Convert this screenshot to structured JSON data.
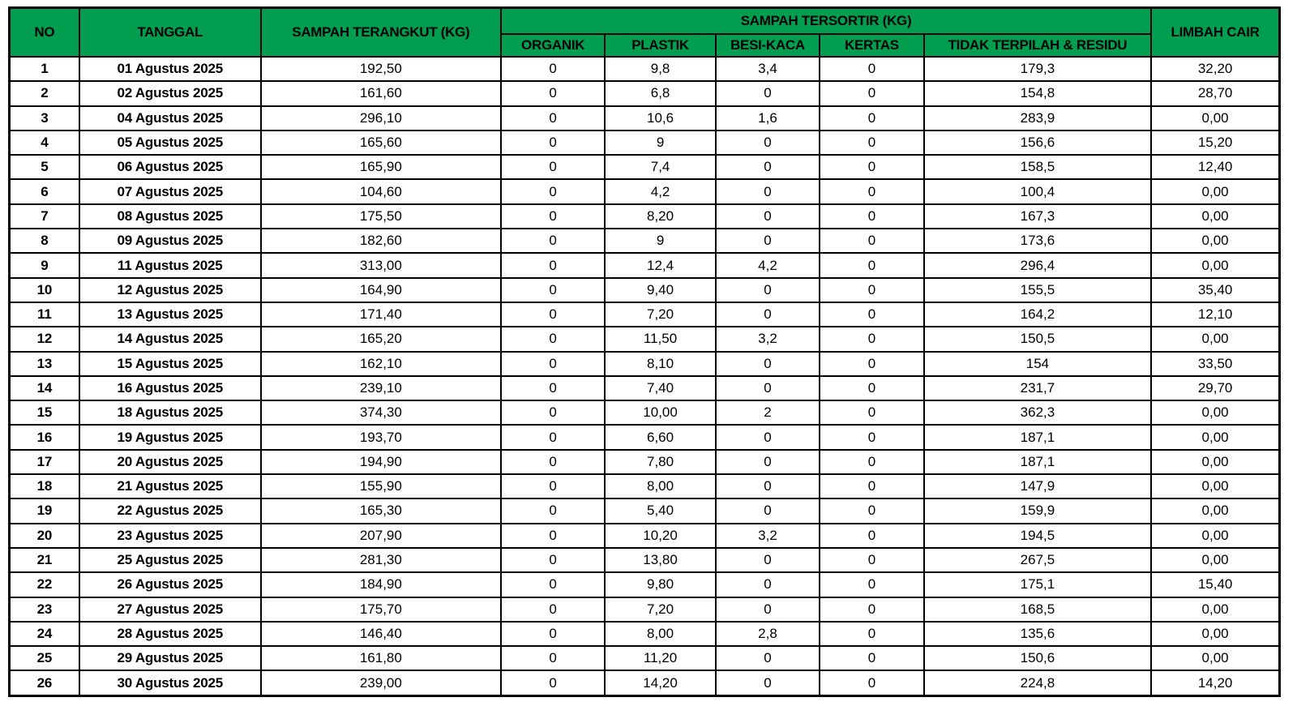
{
  "colors": {
    "header_bg": "#009E4E",
    "border": "#000000",
    "row_bg": "#FFFFFF",
    "text": "#000000"
  },
  "table": {
    "headers": {
      "no": "NO",
      "tanggal": "TANGGAL",
      "terangkut": "SAMPAH TERANGKUT (KG)",
      "tersortir_group": "SAMPAH TERSORTIR (KG)",
      "organik": "ORGANIK",
      "plastik": "PLASTIK",
      "besi_kaca": "BESI-KACA",
      "kertas": "KERTAS",
      "tidak_terpilah": "TIDAK TERPILAH & RESIDU",
      "limbah_cair": "LIMBAH CAIR"
    },
    "rows": [
      [
        "1",
        "01 Agustus 2025",
        "192,50",
        "0",
        "9,8",
        "3,4",
        "0",
        "179,3",
        "32,20"
      ],
      [
        "2",
        "02 Agustus 2025",
        "161,60",
        "0",
        "6,8",
        "0",
        "0",
        "154,8",
        "28,70"
      ],
      [
        "3",
        "04 Agustus 2025",
        "296,10",
        "0",
        "10,6",
        "1,6",
        "0",
        "283,9",
        "0,00"
      ],
      [
        "4",
        "05 Agustus 2025",
        "165,60",
        "0",
        "9",
        "0",
        "0",
        "156,6",
        "15,20"
      ],
      [
        "5",
        "06 Agustus 2025",
        "165,90",
        "0",
        "7,4",
        "0",
        "0",
        "158,5",
        "12,40"
      ],
      [
        "6",
        "07 Agustus 2025",
        "104,60",
        "0",
        "4,2",
        "0",
        "0",
        "100,4",
        "0,00"
      ],
      [
        "7",
        "08 Agustus 2025",
        "175,50",
        "0",
        "8,20",
        "0",
        "0",
        "167,3",
        "0,00"
      ],
      [
        "8",
        "09 Agustus 2025",
        "182,60",
        "0",
        "9",
        "0",
        "0",
        "173,6",
        "0,00"
      ],
      [
        "9",
        "11 Agustus 2025",
        "313,00",
        "0",
        "12,4",
        "4,2",
        "0",
        "296,4",
        "0,00"
      ],
      [
        "10",
        "12 Agustus 2025",
        "164,90",
        "0",
        "9,40",
        "0",
        "0",
        "155,5",
        "35,40"
      ],
      [
        "11",
        "13 Agustus 2025",
        "171,40",
        "0",
        "7,20",
        "0",
        "0",
        "164,2",
        "12,10"
      ],
      [
        "12",
        "14 Agustus 2025",
        "165,20",
        "0",
        "11,50",
        "3,2",
        "0",
        "150,5",
        "0,00"
      ],
      [
        "13",
        "15 Agustus 2025",
        "162,10",
        "0",
        "8,10",
        "0",
        "0",
        "154",
        "33,50"
      ],
      [
        "14",
        "16 Agustus 2025",
        "239,10",
        "0",
        "7,40",
        "0",
        "0",
        "231,7",
        "29,70"
      ],
      [
        "15",
        "18 Agustus 2025",
        "374,30",
        "0",
        "10,00",
        "2",
        "0",
        "362,3",
        "0,00"
      ],
      [
        "16",
        "19 Agustus 2025",
        "193,70",
        "0",
        "6,60",
        "0",
        "0",
        "187,1",
        "0,00"
      ],
      [
        "17",
        "20 Agustus 2025",
        "194,90",
        "0",
        "7,80",
        "0",
        "0",
        "187,1",
        "0,00"
      ],
      [
        "18",
        "21 Agustus 2025",
        "155,90",
        "0",
        "8,00",
        "0",
        "0",
        "147,9",
        "0,00"
      ],
      [
        "19",
        "22 Agustus 2025",
        "165,30",
        "0",
        "5,40",
        "0",
        "0",
        "159,9",
        "0,00"
      ],
      [
        "20",
        "23 Agustus 2025",
        "207,90",
        "0",
        "10,20",
        "3,2",
        "0",
        "194,5",
        "0,00"
      ],
      [
        "21",
        "25 Agustus 2025",
        "281,30",
        "0",
        "13,80",
        "0",
        "0",
        "267,5",
        "0,00"
      ],
      [
        "22",
        "26 Agustus 2025",
        "184,90",
        "0",
        "9,80",
        "0",
        "0",
        "175,1",
        "15,40"
      ],
      [
        "23",
        "27 Agustus 2025",
        "175,70",
        "0",
        "7,20",
        "0",
        "0",
        "168,5",
        "0,00"
      ],
      [
        "24",
        "28 Agustus 2025",
        "146,40",
        "0",
        "8,00",
        "2,8",
        "0",
        "135,6",
        "0,00"
      ],
      [
        "25",
        "29 Agustus 2025",
        "161,80",
        "0",
        "11,20",
        "0",
        "0",
        "150,6",
        "0,00"
      ],
      [
        "26",
        "30 Agustus 2025",
        "239,00",
        "0",
        "14,20",
        "0",
        "0",
        "224,8",
        "14,20"
      ]
    ]
  }
}
